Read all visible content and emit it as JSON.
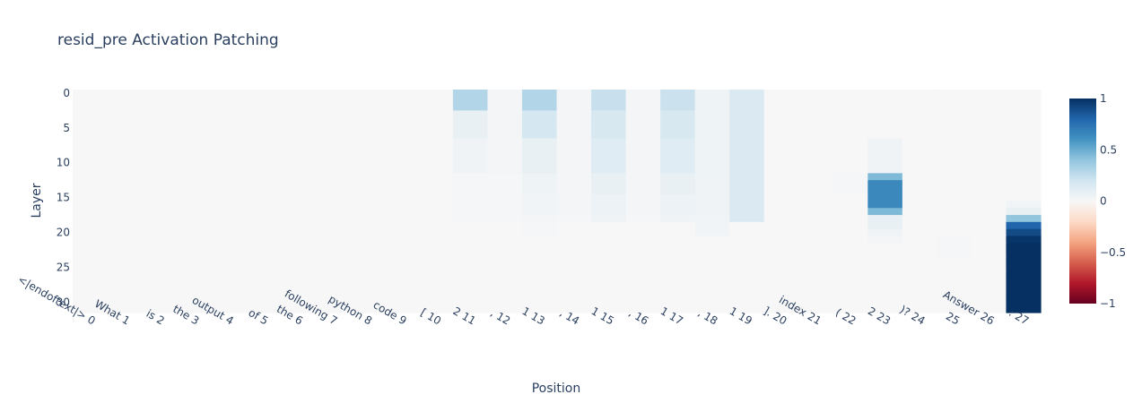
{
  "chart_data": {
    "type": "heatmap",
    "title": "resid_pre Activation Patching",
    "xlabel": "Position",
    "ylabel": "Layer",
    "x_tick_labels": [
      "<|endoftext|> 0",
      "What 1",
      " is 2",
      " the 3",
      " output 4",
      " of 5",
      " the 6",
      " following 7",
      " python 8",
      " code 9",
      "[ 10",
      "2 11",
      ", 12",
      "1 13",
      ", 14",
      "1 15",
      ", 16",
      "1 17",
      ", 18",
      "1 19",
      "]. 20",
      " index 21",
      "( 22",
      "2 23",
      ")? 24",
      " 25",
      "Answer 26",
      ": 27"
    ],
    "y_ticks": [
      0,
      5,
      10,
      15,
      20,
      25,
      30
    ],
    "n_layers": 32,
    "n_positions": 28,
    "zlim": [
      -1,
      1
    ],
    "colorscale": "RdBu",
    "colorbar_ticks": [
      1,
      0.5,
      0,
      -0.5,
      -1
    ],
    "colorbar_tick_labels": [
      "1",
      "0.5",
      "0",
      "−0.5",
      "−1"
    ],
    "grid": false,
    "values": [
      [
        0,
        0,
        0,
        0,
        0,
        0,
        0,
        0,
        0,
        0,
        0,
        0.3,
        0.02,
        0.3,
        0.02,
        0.23,
        0.02,
        0.22,
        0.05,
        0.15,
        0,
        0,
        0,
        0,
        0,
        0,
        0,
        0
      ],
      [
        0,
        0,
        0,
        0,
        0,
        0,
        0,
        0,
        0,
        0,
        0,
        0.3,
        0.02,
        0.3,
        0.02,
        0.23,
        0.02,
        0.22,
        0.05,
        0.15,
        0,
        0,
        0,
        0,
        0,
        0,
        0,
        0
      ],
      [
        0,
        0,
        0,
        0,
        0,
        0,
        0,
        0,
        0,
        0,
        0,
        0.3,
        0.02,
        0.3,
        0.02,
        0.23,
        0.02,
        0.22,
        0.05,
        0.15,
        0,
        0,
        0,
        0,
        0,
        0,
        0,
        0
      ],
      [
        0,
        0,
        0,
        0,
        0,
        0,
        0,
        0,
        0,
        0,
        0,
        0.08,
        0.02,
        0.18,
        0.02,
        0.17,
        0.02,
        0.17,
        0.05,
        0.15,
        0,
        0,
        0,
        0,
        0,
        0,
        0,
        0
      ],
      [
        0,
        0,
        0,
        0,
        0,
        0,
        0,
        0,
        0,
        0,
        0,
        0.08,
        0.02,
        0.18,
        0.02,
        0.17,
        0.02,
        0.17,
        0.05,
        0.15,
        0,
        0,
        0,
        0,
        0,
        0,
        0,
        0
      ],
      [
        0,
        0,
        0,
        0,
        0,
        0,
        0,
        0,
        0,
        0,
        0,
        0.08,
        0.02,
        0.18,
        0.02,
        0.17,
        0.02,
        0.17,
        0.05,
        0.15,
        0,
        0,
        0,
        0,
        0,
        0,
        0,
        0
      ],
      [
        0,
        0,
        0,
        0,
        0,
        0,
        0,
        0,
        0,
        0,
        0,
        0.08,
        0.02,
        0.18,
        0.02,
        0.17,
        0.02,
        0.17,
        0.05,
        0.15,
        0,
        0,
        0,
        0,
        0,
        0,
        0,
        0
      ],
      [
        0,
        0,
        0,
        0,
        0,
        0,
        0,
        0,
        0,
        0,
        0,
        0.04,
        0.02,
        0.08,
        0.02,
        0.12,
        0.02,
        0.12,
        0.05,
        0.15,
        0,
        0,
        0,
        0.04,
        0,
        0,
        0,
        0
      ],
      [
        0,
        0,
        0,
        0,
        0,
        0,
        0,
        0,
        0,
        0,
        0,
        0.04,
        0.02,
        0.08,
        0.02,
        0.12,
        0.02,
        0.12,
        0.05,
        0.15,
        0,
        0,
        0,
        0.04,
        0,
        0,
        0,
        0
      ],
      [
        0,
        0,
        0,
        0,
        0,
        0,
        0,
        0,
        0,
        0,
        0,
        0.04,
        0.02,
        0.08,
        0.02,
        0.12,
        0.02,
        0.12,
        0.05,
        0.15,
        0,
        0,
        0,
        0.04,
        0,
        0,
        0,
        0
      ],
      [
        0,
        0,
        0,
        0,
        0,
        0,
        0,
        0,
        0,
        0,
        0,
        0.04,
        0.02,
        0.08,
        0.02,
        0.12,
        0.02,
        0.12,
        0.05,
        0.15,
        0,
        0,
        0,
        0.04,
        0,
        0,
        0,
        0
      ],
      [
        0,
        0,
        0,
        0,
        0,
        0,
        0,
        0,
        0,
        0,
        0,
        0.04,
        0.02,
        0.08,
        0.02,
        0.12,
        0.02,
        0.12,
        0.05,
        0.15,
        0,
        0,
        0,
        0.04,
        0,
        0,
        0,
        0
      ],
      [
        0,
        0,
        0,
        0,
        0,
        0,
        0,
        0,
        0,
        0,
        0,
        0.01,
        0.01,
        0.05,
        0.02,
        0.08,
        0.02,
        0.08,
        0.04,
        0.15,
        0,
        0,
        0.01,
        0.45,
        0,
        0,
        0,
        0
      ],
      [
        0,
        0,
        0,
        0,
        0,
        0,
        0,
        0,
        0,
        0,
        0,
        0.01,
        0.01,
        0.05,
        0.02,
        0.08,
        0.02,
        0.08,
        0.04,
        0.15,
        0,
        0,
        0.01,
        0.65,
        0,
        0,
        0,
        0
      ],
      [
        0,
        0,
        0,
        0,
        0,
        0,
        0,
        0,
        0,
        0,
        0,
        0.01,
        0.01,
        0.05,
        0.02,
        0.08,
        0.02,
        0.08,
        0.04,
        0.15,
        0,
        0,
        0.01,
        0.65,
        0,
        0,
        0,
        0
      ],
      [
        0,
        0,
        0,
        0,
        0,
        0,
        0,
        0,
        0,
        0,
        0,
        0.01,
        0.01,
        0.03,
        0.02,
        0.06,
        0.02,
        0.06,
        0.04,
        0.15,
        0,
        0,
        0,
        0.65,
        0,
        0,
        0,
        0
      ],
      [
        0,
        0,
        0,
        0,
        0,
        0,
        0,
        0,
        0,
        0,
        0,
        0.01,
        0.01,
        0.03,
        0.02,
        0.06,
        0.02,
        0.06,
        0.04,
        0.15,
        0,
        0,
        0,
        0.65,
        0,
        0,
        0,
        0.03
      ],
      [
        0,
        0,
        0,
        0,
        0,
        0,
        0,
        0,
        0,
        0,
        0,
        0.01,
        0.01,
        0.03,
        0.02,
        0.06,
        0.02,
        0.06,
        0.04,
        0.15,
        0,
        0,
        0,
        0.45,
        0,
        0,
        0,
        0.08
      ],
      [
        0,
        0,
        0,
        0,
        0,
        0,
        0,
        0,
        0,
        0,
        0,
        0.01,
        0.01,
        0.02,
        0.01,
        0.04,
        0.01,
        0.04,
        0.03,
        0.15,
        0,
        0,
        0,
        0.08,
        0,
        0,
        0,
        0.4
      ],
      [
        0,
        0,
        0,
        0,
        0,
        0,
        0,
        0,
        0,
        0,
        0,
        0,
        0,
        0.01,
        0,
        0,
        0,
        0,
        0.03,
        0,
        0,
        0,
        0,
        0.08,
        0,
        0,
        0,
        0.8
      ],
      [
        0,
        0,
        0,
        0,
        0,
        0,
        0,
        0,
        0,
        0,
        0,
        0,
        0,
        0.01,
        0,
        0,
        0,
        0,
        0.03,
        0,
        0,
        0,
        0,
        0.04,
        0,
        0,
        0,
        0.9
      ],
      [
        0,
        0,
        0,
        0,
        0,
        0,
        0,
        0,
        0,
        0,
        0,
        0,
        0,
        0,
        0,
        0,
        0,
        0,
        0,
        0,
        0,
        0,
        0,
        0.02,
        0,
        0.01,
        0,
        0.98
      ],
      [
        0,
        0,
        0,
        0,
        0,
        0,
        0,
        0,
        0,
        0,
        0,
        0,
        0,
        0,
        0,
        0,
        0,
        0,
        0,
        0,
        0,
        0,
        0,
        0,
        0,
        0.01,
        0,
        1.0
      ],
      [
        0,
        0,
        0,
        0,
        0,
        0,
        0,
        0,
        0,
        0,
        0,
        0,
        0,
        0,
        0,
        0,
        0,
        0,
        0,
        0,
        0,
        0,
        0,
        0,
        0,
        0.01,
        0,
        1.0
      ],
      [
        0,
        0,
        0,
        0,
        0,
        0,
        0,
        0,
        0,
        0,
        0,
        0,
        0,
        0,
        0,
        0,
        0,
        0,
        0,
        0,
        0,
        0,
        0,
        0,
        0,
        0,
        0,
        1.0
      ],
      [
        0,
        0,
        0,
        0,
        0,
        0,
        0,
        0,
        0,
        0,
        0,
        0,
        0,
        0,
        0,
        0,
        0,
        0,
        0,
        0,
        0,
        0,
        0,
        0,
        0,
        0,
        0,
        1.0
      ],
      [
        0,
        0,
        0,
        0,
        0,
        0,
        0,
        0,
        0,
        0,
        0,
        0,
        0,
        0,
        0,
        0,
        0,
        0,
        0,
        0,
        0,
        0,
        0,
        0,
        0,
        0,
        0,
        1.0
      ],
      [
        0,
        0,
        0,
        0,
        0,
        0,
        0,
        0,
        0,
        0,
        0,
        0,
        0,
        0,
        0,
        0,
        0,
        0,
        0,
        0,
        0,
        0,
        0,
        0,
        0,
        0,
        0,
        1.0
      ],
      [
        0,
        0,
        0,
        0,
        0,
        0,
        0,
        0,
        0,
        0,
        0,
        0,
        0,
        0,
        0,
        0,
        0,
        0,
        0,
        0,
        0,
        0,
        0,
        0,
        0,
        0,
        0,
        1.0
      ],
      [
        0,
        0,
        0,
        0,
        0,
        0,
        0,
        0,
        0,
        0,
        0,
        0,
        0,
        0,
        0,
        0,
        0,
        0,
        0,
        0,
        0,
        0,
        0,
        0,
        0,
        0,
        0,
        1.0
      ],
      [
        0,
        0,
        0,
        0,
        0,
        0,
        0,
        0,
        0,
        0,
        0,
        0,
        0,
        0,
        0,
        0,
        0,
        0,
        0,
        0,
        0,
        0,
        0,
        0,
        0,
        0,
        0,
        1.0
      ],
      [
        0,
        0,
        0,
        0,
        0,
        0,
        0,
        0,
        0,
        0,
        0,
        0,
        0,
        0,
        0,
        0,
        0,
        0,
        0,
        0,
        0,
        0,
        0,
        0,
        0,
        0,
        0,
        1.0
      ]
    ]
  }
}
